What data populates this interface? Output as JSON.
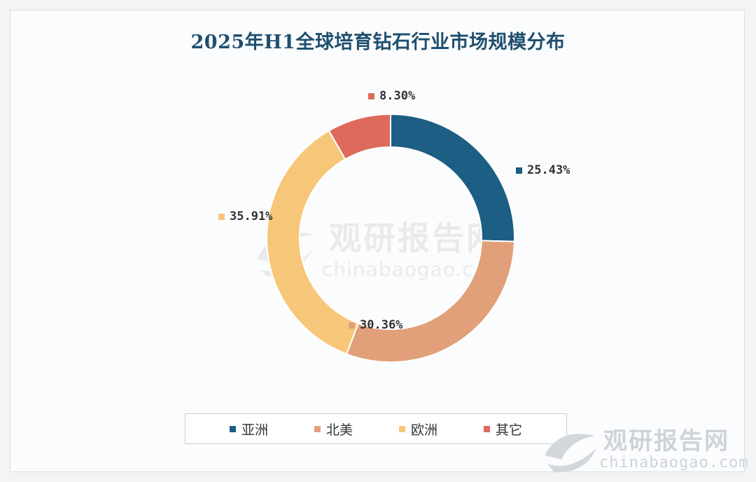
{
  "chart_data": {
    "type": "pie",
    "title": "2025年H1全球培育钻石行业市场规模分布",
    "donut": true,
    "legend_position": "bottom",
    "categories": [
      "亚洲",
      "北美",
      "欧洲",
      "其它"
    ],
    "values": [
      25.43,
      30.36,
      35.91,
      8.3
    ],
    "labels": [
      "25.43%",
      "30.36%",
      "35.91%",
      "8.30%"
    ],
    "colors": [
      "#1c5e84",
      "#e1a07a",
      "#f7c779",
      "#de6a5b"
    ]
  },
  "watermark": {
    "brand": "观研报告网",
    "site": "chinabaogao.com"
  }
}
